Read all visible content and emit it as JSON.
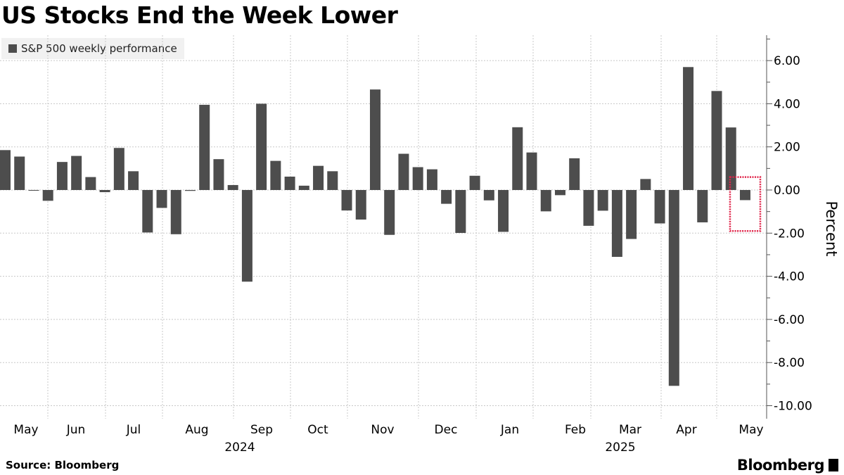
{
  "chart_data": {
    "type": "bar",
    "title": "US Stocks End the Week Lower",
    "legend": [
      "S&P 500 weekly performance"
    ],
    "legend_placement": "top-left",
    "ylabel": "Percent",
    "ylim": [
      -10.5,
      7.2
    ],
    "yticks": [
      "6.00",
      "4.00",
      "2.00",
      "0.00",
      "-2.00",
      "-4.00",
      "-6.00",
      "-8.00",
      "-10.00"
    ],
    "ytick_values": [
      6,
      4,
      2,
      0,
      -2,
      -4,
      -6,
      -8,
      -10
    ],
    "month_labels": [
      "May",
      "Jun",
      "Jul",
      "Aug",
      "Sep",
      "Oct",
      "Nov",
      "Dec",
      "Jan",
      "Feb",
      "Mar",
      "Apr",
      "May"
    ],
    "year_labels": [
      "2024",
      "2025"
    ],
    "bar_color": "#4d4d4d",
    "highlight_color": "#e0254a",
    "highlight_last_bar": true,
    "series": [
      {
        "name": "S&P 500 weekly performance",
        "values": [
          1.85,
          1.55,
          -0.02,
          -0.5,
          1.3,
          1.58,
          0.6,
          -0.1,
          1.95,
          0.87,
          -1.97,
          -0.83,
          -2.05,
          -0.04,
          3.95,
          1.43,
          0.23,
          -4.25,
          4.0,
          1.35,
          0.62,
          0.2,
          1.12,
          0.87,
          -0.95,
          -1.37,
          4.66,
          -2.08,
          1.68,
          1.06,
          0.96,
          -0.64,
          -1.99,
          0.66,
          -0.48,
          -1.94,
          2.91,
          1.74,
          -0.99,
          -0.24,
          1.47,
          -1.66,
          -0.96,
          -3.1,
          -2.27,
          0.51,
          -1.55,
          -9.08,
          5.7,
          -1.5,
          4.59,
          2.9,
          -0.47
        ]
      }
    ]
  },
  "footer": {
    "source": "Source: Bloomberg",
    "brand": "Bloomberg"
  }
}
